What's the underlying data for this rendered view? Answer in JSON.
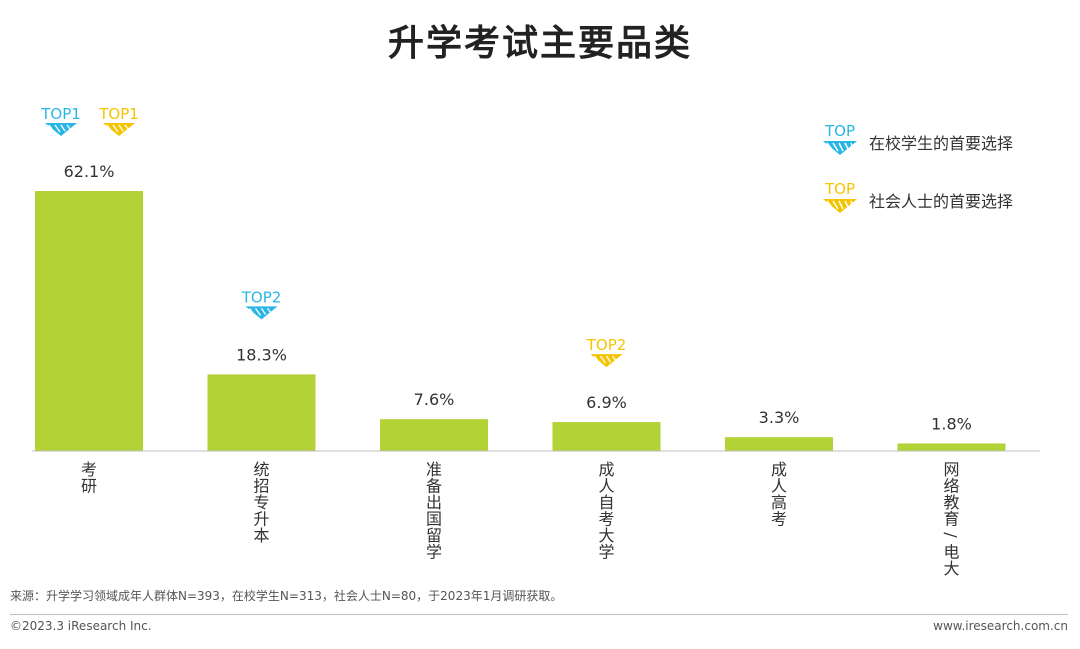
{
  "chart_data": {
    "type": "bar",
    "title": "升学考试主要品类",
    "categories": [
      "考研",
      "统招专升本",
      "准备出国留学",
      "成人自考大学",
      "成人高考",
      "网络教育/电大"
    ],
    "values": [
      62.1,
      18.3,
      7.6,
      6.9,
      3.3,
      1.8
    ],
    "value_labels": [
      "62.1%",
      "18.3%",
      "7.6%",
      "6.9%",
      "3.3%",
      "1.8%"
    ],
    "unit": "%",
    "ylim": [
      0,
      62.1
    ],
    "grid": false,
    "bar_color": "#b2d235",
    "annotations": [
      {
        "category": "考研",
        "group": "student",
        "label": "TOP1"
      },
      {
        "category": "考研",
        "group": "social",
        "label": "TOP1"
      },
      {
        "category": "统招专升本",
        "group": "student",
        "label": "TOP2"
      },
      {
        "category": "成人自考大学",
        "group": "social",
        "label": "TOP2"
      }
    ],
    "legend": {
      "placement": "top-right",
      "items": [
        {
          "group": "student",
          "badge": "TOP",
          "label": "在校学生的首要选择",
          "color": "#29b6e6"
        },
        {
          "group": "social",
          "badge": "TOP",
          "label": "社会人士的首要选择",
          "color": "#f5c400"
        }
      ]
    }
  },
  "footer": {
    "source": "来源：升学学习领域成年人群体N=393，在校学生N=313，社会人士N=80，于2023年1月调研获取。",
    "copyright": "©2023.3 iResearch Inc.",
    "website": "www.iresearch.com.cn"
  }
}
